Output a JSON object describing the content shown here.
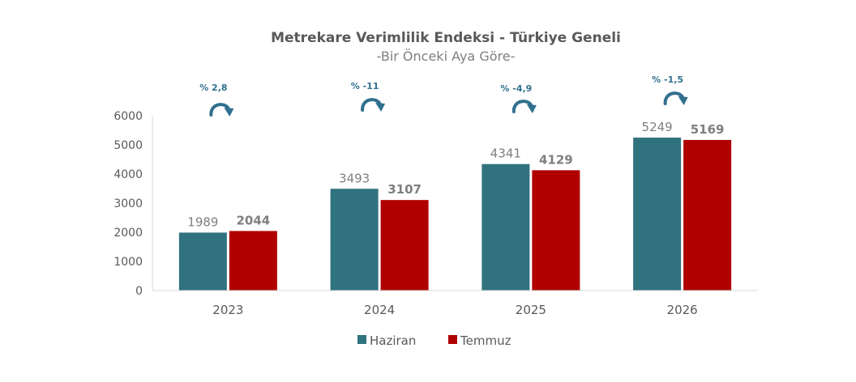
{
  "chart_data": {
    "type": "bar",
    "title": "Metrekare Verimlilik Endeksi - Türkiye Geneli",
    "subtitle": "-Bir Önceki Aya Göre-",
    "categories": [
      "2023",
      "2024",
      "2025",
      "2026"
    ],
    "series": [
      {
        "name": "Haziran",
        "values": [
          1989,
          3493,
          4341,
          5249
        ],
        "color": "#31727f"
      },
      {
        "name": "Temmuz",
        "values": [
          2044,
          3107,
          4129,
          5169
        ],
        "color": "#b00000"
      }
    ],
    "value_labels": {
      "Haziran": [
        "1989",
        "3493",
        "4341",
        "5249"
      ],
      "Temmuz": [
        "2044",
        "3107",
        "4129",
        "5169"
      ]
    },
    "changes": [
      "% 2,8",
      "% -11",
      "% -4,9",
      "% -1,5"
    ],
    "change_icon": "curved-arrow-icon",
    "change_color": "#31708e",
    "ylim": [
      0,
      6000
    ],
    "yticks": [
      "0",
      "1000",
      "2000",
      "3000",
      "4000",
      "5000",
      "6000"
    ],
    "xlabel": "",
    "ylabel": "",
    "grid": false,
    "legend": "bottom"
  }
}
